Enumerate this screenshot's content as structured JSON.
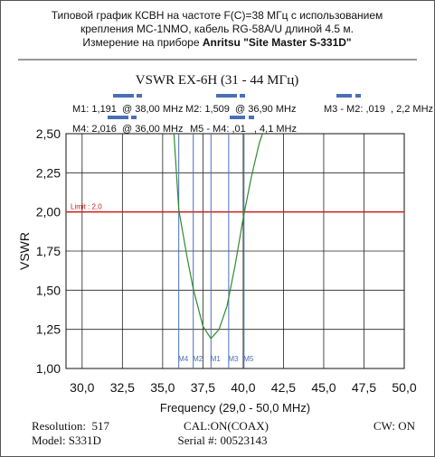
{
  "header": {
    "line1": "Типовой график КСВН на частоте F(C)=38 МГц с использованием",
    "line2": "крепления MC-1NMO, кабель RG-58A/U длиной 4.5 м.",
    "line3": "Измерение на приборе ",
    "line3_bold": "Anritsu \"Site Master S-331D\""
  },
  "chart_data": {
    "type": "line",
    "title": "VSWR EX-6H (31 - 44 МГц)",
    "x_label": "Frequency (29,0 - 50,0 MHz)",
    "y_label": "VSWR",
    "x": [
      35.7,
      36.0,
      36.5,
      36.9,
      37.5,
      38.0,
      38.5,
      39.0,
      39.5,
      40.0,
      40.5,
      41.0,
      41.2
    ],
    "series": [
      {
        "name": "VSWR",
        "color": "#2e8b2e",
        "values": [
          2.5,
          2.016,
          1.72,
          1.509,
          1.27,
          1.191,
          1.25,
          1.4,
          1.66,
          1.96,
          2.22,
          2.44,
          2.5
        ]
      }
    ],
    "xlim": [
      29.0,
      50.0
    ],
    "ylim": [
      1.0,
      2.5
    ],
    "xticks": [
      {
        "value": 30,
        "label": "30,0"
      },
      {
        "value": 32.5,
        "label": "32,5"
      },
      {
        "value": 35,
        "label": "35,0"
      },
      {
        "value": 37.5,
        "label": "37,5"
      },
      {
        "value": 40,
        "label": "40,0"
      },
      {
        "value": 42.5,
        "label": "42,5"
      },
      {
        "value": 45,
        "label": "45,0"
      },
      {
        "value": 47.5,
        "label": "47,5"
      },
      {
        "value": 50,
        "label": "50,0"
      }
    ],
    "yticks": [
      {
        "value": 1,
        "label": "1,00"
      },
      {
        "value": 1.25,
        "label": "1,25"
      },
      {
        "value": 1.5,
        "label": "1,50"
      },
      {
        "value": 1.75,
        "label": "1,75"
      },
      {
        "value": 2,
        "label": "2,00"
      },
      {
        "value": 2.25,
        "label": "2,25"
      },
      {
        "value": 2.5,
        "label": "2,50"
      }
    ],
    "grid": true,
    "limit": {
      "value": 2.0,
      "label": "Limit : 2,0",
      "color": "#d02020"
    },
    "markers": [
      {
        "name": "M4",
        "x": 36.0
      },
      {
        "name": "M2",
        "x": 36.9
      },
      {
        "name": "M1",
        "x": 38.0
      },
      {
        "name": "M3",
        "x": 39.1
      },
      {
        "name": "M5",
        "x": 40.05
      }
    ],
    "marker_color": "#4a6fb5",
    "readouts": [
      "M1: 1,191  @ 38,00 MHz",
      "M2: 1,509  @ 36,90 MHz",
      "M3 - M2: ,019  , 2,2 MHz",
      "M4: 2,016  @ 36,00 MHz",
      "M5 - M4: ,01   , 4,1 MHz"
    ]
  },
  "footer": {
    "resolution": "Resolution:  517",
    "cal": "CAL:ON(COAX)",
    "cw": "CW: ON",
    "model": "Model: S331D",
    "serial": "Serial #: 00523143"
  }
}
